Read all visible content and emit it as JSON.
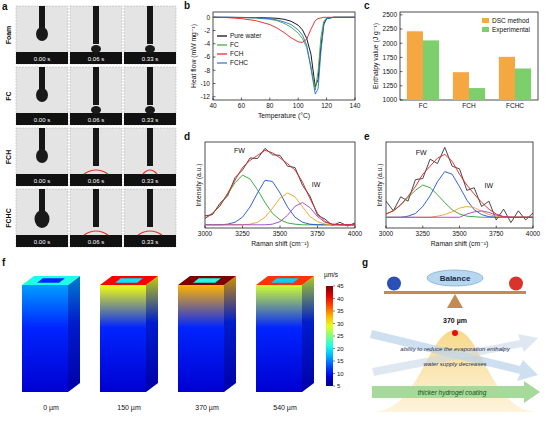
{
  "panel_labels": [
    "a",
    "b",
    "c",
    "d",
    "e",
    "f",
    "g"
  ],
  "droplet_panel": {
    "rows": [
      "Foam",
      "FC",
      "FCH",
      "FCHC"
    ],
    "times": [
      "0.00 s",
      "0.06 s",
      "0.33 s"
    ]
  },
  "chart_data": [
    {
      "type": "line",
      "x_label": "Temperature (°C)",
      "y_label": "Heat flow (mW mg⁻¹)",
      "x": [
        40,
        50,
        60,
        70,
        80,
        85,
        90,
        95,
        100,
        103,
        106,
        109,
        112,
        114,
        116,
        118,
        120,
        125,
        130,
        140
      ],
      "series": [
        {
          "name": "Pure water",
          "color": "#000000",
          "values": [
            0,
            0,
            -0.02,
            -0.05,
            -0.1,
            -0.15,
            -0.3,
            -0.6,
            -1.2,
            -1.9,
            -3.2,
            -5.6,
            -10.5,
            -9.4,
            -4.5,
            -1,
            -0.2,
            0,
            0,
            0
          ]
        },
        {
          "name": "FC",
          "color": "#3fa535",
          "values": [
            0,
            -0.02,
            -0.05,
            -0.1,
            -0.3,
            -0.5,
            -0.9,
            -1.5,
            -2.4,
            -3.2,
            -4.6,
            -7.4,
            -11,
            -8.2,
            -3,
            -0.6,
            -0.1,
            0,
            0,
            0
          ]
        },
        {
          "name": "FCH",
          "color": "#e02020",
          "values": [
            0,
            -0.05,
            -0.2,
            -0.5,
            -1.1,
            -1.6,
            -2.3,
            -3.1,
            -3.7,
            -3.8,
            -3.3,
            -1.8,
            -0.5,
            -0.2,
            -0.1,
            0,
            0,
            0,
            0,
            0
          ]
        },
        {
          "name": "FCHC",
          "color": "#2a6fd6",
          "values": [
            0,
            0,
            -0.03,
            -0.08,
            -0.2,
            -0.4,
            -0.7,
            -1.1,
            -1.9,
            -2.7,
            -4.2,
            -7.8,
            -11.6,
            -10.8,
            -5.2,
            -1.2,
            -0.2,
            0,
            0,
            0
          ]
        }
      ],
      "xlim": [
        40,
        140
      ],
      "xticks": [
        40,
        60,
        80,
        100,
        120,
        140
      ],
      "ylim": [
        -12.5,
        0.8
      ],
      "yticks": [
        0,
        -2,
        -4,
        -6,
        -8,
        -10,
        -12
      ],
      "legend": "left"
    },
    {
      "type": "bar",
      "y_label": "Enthalpy value (J g⁻¹)",
      "categories": [
        "FC",
        "FCH",
        "FCHC"
      ],
      "series": [
        {
          "name": "DSC method",
          "color": "#f5a742",
          "values": [
            2210,
            1490,
            1760
          ]
        },
        {
          "name": "Experimental",
          "color": "#7ccf6b",
          "values": [
            2050,
            1210,
            1555
          ]
        }
      ],
      "ylim": [
        1000,
        2550
      ],
      "yticks": [
        1000,
        1250,
        1500,
        1750,
        2000,
        2250,
        2500
      ],
      "legend": "top-right"
    },
    {
      "type": "line",
      "x_label": "Raman shift (cm⁻¹)",
      "y_label": "Intensity (a.u.)",
      "x": [
        3000,
        3050,
        3100,
        3150,
        3200,
        3250,
        3300,
        3350,
        3400,
        3450,
        3500,
        3550,
        3600,
        3650,
        3700,
        3750,
        3800,
        3850,
        3900,
        3950,
        4000
      ],
      "series": [
        {
          "color": "#333333",
          "values": [
            0.14,
            0.16,
            0.34,
            0.45,
            0.74,
            0.86,
            1.05,
            1.04,
            1.2,
            1.1,
            1.09,
            0.92,
            0.9,
            0.62,
            0.45,
            0.15,
            0.09,
            -0.01,
            0.04,
            -0.02,
            0.03
          ]
        },
        {
          "color": "#2ca02c",
          "values": [
            0.1,
            0.18,
            0.3,
            0.48,
            0.66,
            0.78,
            0.72,
            0.55,
            0.35,
            0.18,
            0.08,
            0.03,
            0.01,
            0,
            0,
            0,
            0,
            0,
            0,
            0,
            0
          ]
        },
        {
          "color": "#1f4fd8",
          "values": [
            0,
            0,
            0,
            0.01,
            0.04,
            0.12,
            0.28,
            0.5,
            0.7,
            0.68,
            0.5,
            0.28,
            0.12,
            0.04,
            0.01,
            0,
            0,
            0,
            0,
            0,
            0
          ]
        },
        {
          "color": "#f0a020",
          "values": [
            0,
            0,
            0,
            0,
            0,
            0,
            0.01,
            0.04,
            0.12,
            0.26,
            0.42,
            0.5,
            0.44,
            0.28,
            0.13,
            0.05,
            0.01,
            0,
            0,
            0,
            0
          ]
        },
        {
          "color": "#9b3fc8",
          "values": [
            0,
            0,
            0,
            0,
            0,
            0,
            0,
            0,
            0,
            0.01,
            0.05,
            0.15,
            0.29,
            0.35,
            0.27,
            0.13,
            0.04,
            0.01,
            0,
            0,
            0
          ]
        },
        {
          "color": "#e02020",
          "values": [
            0.1,
            0.18,
            0.3,
            0.49,
            0.7,
            0.9,
            1.01,
            1.09,
            1.17,
            1.13,
            1.05,
            0.96,
            0.86,
            0.67,
            0.41,
            0.18,
            0.05,
            0.01,
            0,
            0,
            0
          ]
        }
      ],
      "xlim": [
        3000,
        4000
      ],
      "xticks": [
        3000,
        3250,
        3500,
        3750,
        4000
      ],
      "ylim": [
        -0.05,
        1.3
      ],
      "tick_labels": "x",
      "annotations": [
        {
          "text": "FW",
          "x": 3230,
          "y": 1.12
        },
        {
          "text": "IW",
          "x": 3740,
          "y": 0.6
        }
      ]
    },
    {
      "type": "line",
      "x_label": "Raman shift (cm⁻¹)",
      "y_label": "Intensity (a.u.)",
      "x": [
        3000,
        3050,
        3100,
        3150,
        3200,
        3250,
        3300,
        3350,
        3400,
        3450,
        3500,
        3550,
        3600,
        3650,
        3700,
        3750,
        3800,
        3850,
        3900,
        3950,
        4000
      ],
      "series": [
        {
          "color": "#333333",
          "values": [
            0.3,
            0.12,
            0.38,
            0.3,
            0.7,
            0.72,
            1.08,
            1.0,
            1.3,
            0.95,
            0.9,
            0.5,
            0.55,
            0.2,
            0.3,
            -0.05,
            0.15,
            -0.1,
            0.12,
            -0.05,
            0.08
          ]
        },
        {
          "color": "#2ca02c",
          "values": [
            0.06,
            0.12,
            0.23,
            0.37,
            0.5,
            0.6,
            0.55,
            0.42,
            0.27,
            0.14,
            0.06,
            0.02,
            0.01,
            0,
            0,
            0,
            0,
            0,
            0,
            0,
            0
          ]
        },
        {
          "color": "#1f4fd8",
          "values": [
            0,
            0,
            0,
            0.02,
            0.07,
            0.2,
            0.4,
            0.66,
            0.85,
            0.8,
            0.57,
            0.32,
            0.14,
            0.05,
            0.01,
            0,
            0,
            0,
            0,
            0,
            0
          ]
        },
        {
          "color": "#f0a020",
          "values": [
            0,
            0,
            0,
            0,
            0,
            0,
            0,
            0.02,
            0.05,
            0.1,
            0.17,
            0.2,
            0.18,
            0.11,
            0.05,
            0.02,
            0,
            0,
            0,
            0,
            0
          ]
        },
        {
          "color": "#9b3fc8",
          "values": [
            0,
            0,
            0,
            0,
            0,
            0,
            0,
            0,
            0,
            0,
            0,
            0.06,
            0.1,
            0.12,
            0.09,
            0.04,
            0.01,
            0,
            0,
            0,
            0
          ]
        },
        {
          "color": "#e02020",
          "values": [
            0.06,
            0.12,
            0.23,
            0.39,
            0.57,
            0.8,
            0.95,
            1.1,
            1.17,
            1.04,
            0.8,
            0.6,
            0.43,
            0.28,
            0.15,
            0.06,
            0.01,
            0,
            0,
            0,
            0
          ]
        }
      ],
      "xlim": [
        3000,
        4000
      ],
      "xticks": [
        3000,
        3250,
        3500,
        3750,
        4000
      ],
      "ylim": [
        -0.2,
        1.4
      ],
      "tick_labels": "x",
      "annotations": [
        {
          "text": "FW",
          "x": 3240,
          "y": 1.15
        },
        {
          "text": "IW",
          "x": 3700,
          "y": 0.55
        }
      ]
    }
  ],
  "flow_panel": {
    "columns": [
      {
        "label": "0 µm",
        "top_speed": 21
      },
      {
        "label": "150 µm",
        "top_speed": 40
      },
      {
        "label": "370 µm",
        "top_speed": 45
      },
      {
        "label": "540 µm",
        "top_speed": 38
      }
    ],
    "colorbar": {
      "title": "µm/s",
      "range": [
        5,
        45
      ],
      "ticks": [
        5,
        10,
        15,
        20,
        25,
        30,
        35,
        40,
        45
      ]
    }
  },
  "balance_panel": {
    "balance": "Balance",
    "optimum": "370 µm",
    "arrows": [
      "ability to reduce the evaporation enthalpy",
      "water supply decreases",
      "thicker hydrogel coating"
    ]
  }
}
